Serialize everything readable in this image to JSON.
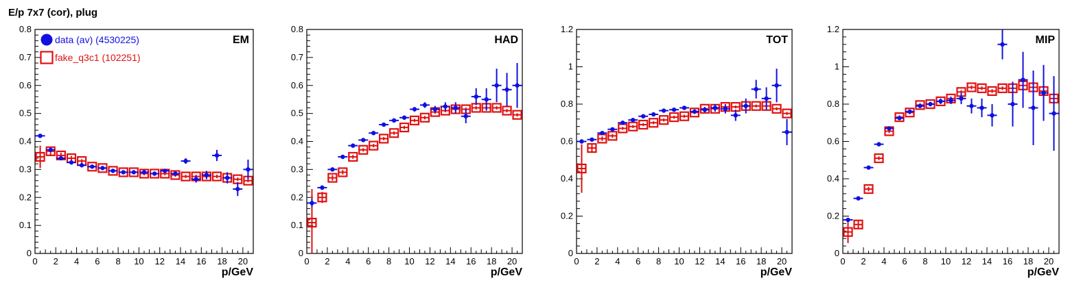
{
  "page": {
    "title": "E/p 7x7 (cor), plug"
  },
  "styles": {
    "data_color": "#1010e0",
    "fake_color": "#e01010",
    "axis_color": "#000000"
  },
  "chart_data": [
    {
      "type": "scatter",
      "panel_label": "EM",
      "xlabel": "p/GeV",
      "xlim": [
        0,
        21
      ],
      "ylim": [
        0,
        0.8
      ],
      "x_ticks": [
        0,
        2,
        4,
        6,
        8,
        10,
        12,
        14,
        16,
        18,
        20
      ],
      "y_ticks": [
        0,
        0.1,
        0.2,
        0.3,
        0.4,
        0.5,
        0.6,
        0.7,
        0.8
      ],
      "legend": [
        {
          "series": "data",
          "label": "data (av) (4530225)"
        },
        {
          "series": "fake",
          "label": "fake_q3c1 (102251)"
        }
      ],
      "x": [
        0.5,
        1.5,
        2.5,
        3.5,
        4.5,
        5.5,
        6.5,
        7.5,
        8.5,
        9.5,
        10.5,
        11.5,
        12.5,
        13.5,
        14.5,
        15.5,
        16.5,
        17.5,
        18.5,
        19.5,
        20.5
      ],
      "series": [
        {
          "id": "data",
          "values": [
            0.42,
            0.37,
            0.34,
            0.325,
            0.315,
            0.31,
            0.305,
            0.295,
            0.29,
            0.29,
            0.29,
            0.285,
            0.295,
            0.285,
            0.33,
            0.265,
            0.28,
            0.35,
            0.27,
            0.23,
            0.3
          ],
          "errors": [
            0.005,
            0.005,
            0.005,
            0.005,
            0.005,
            0.005,
            0.005,
            0.005,
            0.005,
            0.005,
            0.006,
            0.006,
            0.007,
            0.008,
            0.01,
            0.012,
            0.015,
            0.02,
            0.02,
            0.025,
            0.035
          ]
        },
        {
          "id": "fake",
          "values": [
            0.345,
            0.365,
            0.35,
            0.34,
            0.33,
            0.31,
            0.305,
            0.295,
            0.29,
            0.29,
            0.285,
            0.285,
            0.285,
            0.28,
            0.275,
            0.275,
            0.275,
            0.275,
            0.27,
            0.265,
            0.26
          ],
          "errors": [
            0.04,
            0.015,
            0.01,
            0.008,
            0.007,
            0.006,
            0.006,
            0.006,
            0.006,
            0.006,
            0.006,
            0.006,
            0.006,
            0.006,
            0.006,
            0.006,
            0.006,
            0.006,
            0.006,
            0.006,
            0.006
          ]
        }
      ]
    },
    {
      "type": "scatter",
      "panel_label": "HAD",
      "xlabel": "p/GeV",
      "xlim": [
        0,
        21
      ],
      "ylim": [
        0,
        0.8
      ],
      "x_ticks": [
        0,
        2,
        4,
        6,
        8,
        10,
        12,
        14,
        16,
        18,
        20
      ],
      "y_ticks": [
        0,
        0.1,
        0.2,
        0.3,
        0.4,
        0.5,
        0.6,
        0.7,
        0.8
      ],
      "x": [
        0.5,
        1.5,
        2.5,
        3.5,
        4.5,
        5.5,
        6.5,
        7.5,
        8.5,
        9.5,
        10.5,
        11.5,
        12.5,
        13.5,
        14.5,
        15.5,
        16.5,
        17.5,
        18.5,
        19.5,
        20.5
      ],
      "series": [
        {
          "id": "data",
          "values": [
            0.18,
            0.235,
            0.3,
            0.345,
            0.385,
            0.405,
            0.43,
            0.46,
            0.475,
            0.485,
            0.515,
            0.53,
            0.515,
            0.525,
            0.52,
            0.49,
            0.56,
            0.55,
            0.6,
            0.585,
            0.6
          ],
          "errors": [
            0.015,
            0.008,
            0.006,
            0.005,
            0.005,
            0.005,
            0.005,
            0.005,
            0.006,
            0.007,
            0.008,
            0.01,
            0.012,
            0.015,
            0.02,
            0.025,
            0.03,
            0.04,
            0.06,
            0.06,
            0.08
          ]
        },
        {
          "id": "fake",
          "values": [
            0.11,
            0.2,
            0.27,
            0.29,
            0.345,
            0.37,
            0.385,
            0.41,
            0.43,
            0.45,
            0.475,
            0.485,
            0.505,
            0.51,
            0.515,
            0.515,
            0.52,
            0.52,
            0.52,
            0.51,
            0.495
          ],
          "errors": [
            0.12,
            0.02,
            0.01,
            0.008,
            0.007,
            0.006,
            0.006,
            0.006,
            0.006,
            0.006,
            0.006,
            0.006,
            0.006,
            0.006,
            0.006,
            0.006,
            0.006,
            0.006,
            0.006,
            0.006,
            0.006
          ]
        }
      ]
    },
    {
      "type": "scatter",
      "panel_label": "TOT",
      "xlabel": "p/GeV",
      "xlim": [
        0,
        21
      ],
      "ylim": [
        0,
        1.2
      ],
      "x_ticks": [
        0,
        2,
        4,
        6,
        8,
        10,
        12,
        14,
        16,
        18,
        20
      ],
      "y_ticks": [
        0,
        0.2,
        0.4,
        0.6,
        0.8,
        1,
        1.2
      ],
      "x": [
        0.5,
        1.5,
        2.5,
        3.5,
        4.5,
        5.5,
        6.5,
        7.5,
        8.5,
        9.5,
        10.5,
        11.5,
        12.5,
        13.5,
        14.5,
        15.5,
        16.5,
        17.5,
        18.5,
        19.5,
        20.5
      ],
      "series": [
        {
          "id": "data",
          "values": [
            0.6,
            0.61,
            0.645,
            0.665,
            0.7,
            0.715,
            0.735,
            0.745,
            0.765,
            0.77,
            0.78,
            0.76,
            0.77,
            0.78,
            0.775,
            0.74,
            0.79,
            0.88,
            0.83,
            0.9,
            0.65
          ],
          "errors": [
            0.01,
            0.008,
            0.006,
            0.005,
            0.005,
            0.005,
            0.005,
            0.006,
            0.007,
            0.008,
            0.01,
            0.012,
            0.015,
            0.02,
            0.025,
            0.03,
            0.04,
            0.05,
            0.06,
            0.09,
            0.07
          ]
        },
        {
          "id": "fake",
          "values": [
            0.455,
            0.565,
            0.615,
            0.63,
            0.67,
            0.68,
            0.69,
            0.7,
            0.715,
            0.73,
            0.735,
            0.755,
            0.775,
            0.775,
            0.785,
            0.785,
            0.79,
            0.79,
            0.79,
            0.775,
            0.75
          ],
          "errors": [
            0.13,
            0.02,
            0.012,
            0.01,
            0.008,
            0.008,
            0.008,
            0.008,
            0.008,
            0.008,
            0.008,
            0.008,
            0.008,
            0.008,
            0.008,
            0.008,
            0.008,
            0.008,
            0.008,
            0.008,
            0.008
          ]
        }
      ]
    },
    {
      "type": "scatter",
      "panel_label": "MIP",
      "xlabel": "p/GeV",
      "xlim": [
        0,
        21
      ],
      "ylim": [
        0,
        1.2
      ],
      "x_ticks": [
        0,
        2,
        4,
        6,
        8,
        10,
        12,
        14,
        16,
        18,
        20
      ],
      "y_ticks": [
        0,
        0.2,
        0.4,
        0.6,
        0.8,
        1,
        1.2
      ],
      "x": [
        0.5,
        1.5,
        2.5,
        3.5,
        4.5,
        5.5,
        6.5,
        7.5,
        8.5,
        9.5,
        10.5,
        11.5,
        12.5,
        13.5,
        14.5,
        15.5,
        16.5,
        17.5,
        18.5,
        19.5,
        20.5
      ],
      "series": [
        {
          "id": "data",
          "values": [
            0.18,
            0.295,
            0.46,
            0.585,
            0.67,
            0.725,
            0.76,
            0.79,
            0.8,
            0.815,
            0.82,
            0.83,
            0.79,
            0.78,
            0.74,
            1.12,
            0.8,
            0.93,
            0.78,
            0.86,
            0.75
          ],
          "errors": [
            0.01,
            0.006,
            0.006,
            0.006,
            0.006,
            0.006,
            0.008,
            0.01,
            0.012,
            0.015,
            0.02,
            0.03,
            0.04,
            0.05,
            0.06,
            0.08,
            0.12,
            0.15,
            0.2,
            0.15,
            0.2
          ]
        },
        {
          "id": "fake",
          "values": [
            0.115,
            0.155,
            0.345,
            0.51,
            0.655,
            0.73,
            0.755,
            0.795,
            0.8,
            0.815,
            0.83,
            0.865,
            0.89,
            0.885,
            0.87,
            0.885,
            0.885,
            0.9,
            0.89,
            0.87,
            0.83
          ],
          "errors": [
            0.06,
            0.02,
            0.012,
            0.01,
            0.01,
            0.01,
            0.01,
            0.01,
            0.01,
            0.01,
            0.01,
            0.01,
            0.01,
            0.01,
            0.01,
            0.01,
            0.01,
            0.01,
            0.01,
            0.01,
            0.01
          ]
        }
      ]
    }
  ]
}
